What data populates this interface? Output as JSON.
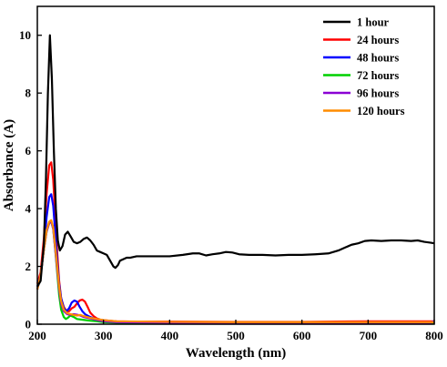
{
  "chart_data": {
    "type": "line",
    "title": "",
    "xlabel": "Wavelength (nm)",
    "ylabel": "Absorbance (A)",
    "xlim": [
      200,
      800
    ],
    "ylim": [
      0,
      11
    ],
    "xticks": [
      200,
      300,
      400,
      500,
      600,
      700,
      800
    ],
    "xtick_labels": [
      "200",
      "300",
      "400",
      "500",
      "600",
      "700",
      "800"
    ],
    "yticks": [
      0,
      2,
      4,
      6,
      8,
      10
    ],
    "ytick_labels": [
      "0",
      "2",
      "4",
      "6",
      "8",
      "10"
    ],
    "grid": false,
    "legend_position": "top-right",
    "series": [
      {
        "name": "1 hour",
        "color": "#000000",
        "points": [
          [
            200,
            1.3
          ],
          [
            205,
            1.5
          ],
          [
            210,
            2.8
          ],
          [
            213,
            5.0
          ],
          [
            216,
            8.0
          ],
          [
            219,
            10.0
          ],
          [
            222,
            8.5
          ],
          [
            225,
            6.0
          ],
          [
            228,
            4.0
          ],
          [
            231,
            2.9
          ],
          [
            234,
            2.55
          ],
          [
            238,
            2.7
          ],
          [
            242,
            3.1
          ],
          [
            246,
            3.2
          ],
          [
            250,
            3.05
          ],
          [
            255,
            2.85
          ],
          [
            260,
            2.8
          ],
          [
            265,
            2.85
          ],
          [
            270,
            2.95
          ],
          [
            275,
            3.0
          ],
          [
            280,
            2.9
          ],
          [
            285,
            2.75
          ],
          [
            290,
            2.55
          ],
          [
            295,
            2.5
          ],
          [
            300,
            2.45
          ],
          [
            305,
            2.4
          ],
          [
            310,
            2.2
          ],
          [
            315,
            2.0
          ],
          [
            318,
            1.95
          ],
          [
            322,
            2.05
          ],
          [
            325,
            2.2
          ],
          [
            330,
            2.25
          ],
          [
            335,
            2.3
          ],
          [
            340,
            2.3
          ],
          [
            350,
            2.35
          ],
          [
            370,
            2.35
          ],
          [
            390,
            2.35
          ],
          [
            400,
            2.35
          ],
          [
            420,
            2.4
          ],
          [
            435,
            2.45
          ],
          [
            445,
            2.45
          ],
          [
            455,
            2.38
          ],
          [
            465,
            2.42
          ],
          [
            475,
            2.45
          ],
          [
            485,
            2.5
          ],
          [
            495,
            2.48
          ],
          [
            505,
            2.42
          ],
          [
            520,
            2.4
          ],
          [
            540,
            2.4
          ],
          [
            560,
            2.38
          ],
          [
            580,
            2.4
          ],
          [
            600,
            2.4
          ],
          [
            620,
            2.42
          ],
          [
            640,
            2.45
          ],
          [
            655,
            2.55
          ],
          [
            665,
            2.65
          ],
          [
            675,
            2.75
          ],
          [
            685,
            2.8
          ],
          [
            695,
            2.88
          ],
          [
            705,
            2.9
          ],
          [
            720,
            2.88
          ],
          [
            735,
            2.9
          ],
          [
            750,
            2.9
          ],
          [
            765,
            2.88
          ],
          [
            775,
            2.9
          ],
          [
            785,
            2.85
          ],
          [
            795,
            2.82
          ],
          [
            800,
            2.8
          ]
        ]
      },
      {
        "name": "24 hours",
        "color": "#ff0000",
        "points": [
          [
            200,
            1.4
          ],
          [
            205,
            1.8
          ],
          [
            210,
            3.0
          ],
          [
            214,
            4.5
          ],
          [
            218,
            5.5
          ],
          [
            221,
            5.6
          ],
          [
            224,
            5.0
          ],
          [
            227,
            3.8
          ],
          [
            230,
            2.5
          ],
          [
            233,
            1.5
          ],
          [
            236,
            0.9
          ],
          [
            240,
            0.6
          ],
          [
            244,
            0.45
          ],
          [
            248,
            0.45
          ],
          [
            252,
            0.55
          ],
          [
            256,
            0.6
          ],
          [
            260,
            0.72
          ],
          [
            264,
            0.82
          ],
          [
            268,
            0.85
          ],
          [
            272,
            0.78
          ],
          [
            276,
            0.6
          ],
          [
            280,
            0.4
          ],
          [
            285,
            0.28
          ],
          [
            290,
            0.2
          ],
          [
            295,
            0.16
          ],
          [
            300,
            0.14
          ],
          [
            310,
            0.12
          ],
          [
            320,
            0.1
          ],
          [
            340,
            0.09
          ],
          [
            400,
            0.09
          ],
          [
            500,
            0.08
          ],
          [
            600,
            0.08
          ],
          [
            700,
            0.1
          ],
          [
            800,
            0.1
          ]
        ]
      },
      {
        "name": "48 hours",
        "color": "#0000ff",
        "points": [
          [
            200,
            1.3
          ],
          [
            205,
            1.7
          ],
          [
            210,
            2.6
          ],
          [
            214,
            3.7
          ],
          [
            218,
            4.4
          ],
          [
            221,
            4.5
          ],
          [
            224,
            4.1
          ],
          [
            227,
            3.2
          ],
          [
            230,
            2.2
          ],
          [
            233,
            1.4
          ],
          [
            236,
            0.9
          ],
          [
            240,
            0.55
          ],
          [
            244,
            0.45
          ],
          [
            248,
            0.55
          ],
          [
            252,
            0.75
          ],
          [
            256,
            0.82
          ],
          [
            260,
            0.78
          ],
          [
            264,
            0.6
          ],
          [
            268,
            0.45
          ],
          [
            272,
            0.35
          ],
          [
            278,
            0.27
          ],
          [
            285,
            0.2
          ],
          [
            292,
            0.15
          ],
          [
            300,
            0.12
          ],
          [
            310,
            0.1
          ],
          [
            330,
            0.08
          ],
          [
            400,
            0.07
          ],
          [
            500,
            0.06
          ],
          [
            600,
            0.06
          ],
          [
            700,
            0.06
          ],
          [
            800,
            0.05
          ]
        ]
      },
      {
        "name": "72 hours",
        "color": "#00d000",
        "points": [
          [
            200,
            1.2
          ],
          [
            205,
            1.7
          ],
          [
            210,
            2.6
          ],
          [
            214,
            3.2
          ],
          [
            218,
            3.5
          ],
          [
            221,
            3.55
          ],
          [
            224,
            3.3
          ],
          [
            227,
            2.6
          ],
          [
            230,
            1.8
          ],
          [
            233,
            1.0
          ],
          [
            236,
            0.5
          ],
          [
            240,
            0.25
          ],
          [
            243,
            0.18
          ],
          [
            246,
            0.22
          ],
          [
            250,
            0.3
          ],
          [
            255,
            0.25
          ],
          [
            260,
            0.18
          ],
          [
            270,
            0.15
          ],
          [
            280,
            0.12
          ],
          [
            290,
            0.1
          ],
          [
            300,
            0.07
          ],
          [
            320,
            0.05
          ],
          [
            400,
            0.03
          ],
          [
            500,
            0.02
          ],
          [
            600,
            0.02
          ],
          [
            700,
            0.02
          ],
          [
            800,
            0.02
          ]
        ]
      },
      {
        "name": "96 hours",
        "color": "#8a00d4",
        "points": [
          [
            200,
            1.2
          ],
          [
            205,
            1.7
          ],
          [
            210,
            2.6
          ],
          [
            214,
            3.2
          ],
          [
            218,
            3.5
          ],
          [
            221,
            3.55
          ],
          [
            224,
            3.3
          ],
          [
            227,
            2.6
          ],
          [
            230,
            1.9
          ],
          [
            233,
            1.2
          ],
          [
            236,
            0.7
          ],
          [
            240,
            0.45
          ],
          [
            245,
            0.35
          ],
          [
            250,
            0.32
          ],
          [
            255,
            0.35
          ],
          [
            260,
            0.33
          ],
          [
            265,
            0.3
          ],
          [
            270,
            0.25
          ],
          [
            280,
            0.2
          ],
          [
            290,
            0.15
          ],
          [
            300,
            0.1
          ],
          [
            320,
            0.07
          ],
          [
            400,
            0.05
          ],
          [
            500,
            0.04
          ],
          [
            600,
            0.04
          ],
          [
            700,
            0.04
          ],
          [
            795,
            0.04
          ],
          [
            798,
            0.1
          ],
          [
            800,
            0.04
          ]
        ]
      },
      {
        "name": "120 hours",
        "color": "#ff8c00",
        "points": [
          [
            200,
            1.2
          ],
          [
            205,
            1.7
          ],
          [
            210,
            2.6
          ],
          [
            214,
            3.25
          ],
          [
            218,
            3.55
          ],
          [
            221,
            3.6
          ],
          [
            224,
            3.35
          ],
          [
            227,
            2.7
          ],
          [
            230,
            2.0
          ],
          [
            233,
            1.3
          ],
          [
            236,
            0.8
          ],
          [
            240,
            0.5
          ],
          [
            245,
            0.38
          ],
          [
            250,
            0.35
          ],
          [
            255,
            0.32
          ],
          [
            260,
            0.3
          ],
          [
            265,
            0.32
          ],
          [
            270,
            0.28
          ],
          [
            280,
            0.22
          ],
          [
            290,
            0.18
          ],
          [
            300,
            0.14
          ],
          [
            320,
            0.1
          ],
          [
            400,
            0.08
          ],
          [
            500,
            0.07
          ],
          [
            600,
            0.07
          ],
          [
            700,
            0.07
          ],
          [
            800,
            0.07
          ]
        ]
      }
    ]
  }
}
